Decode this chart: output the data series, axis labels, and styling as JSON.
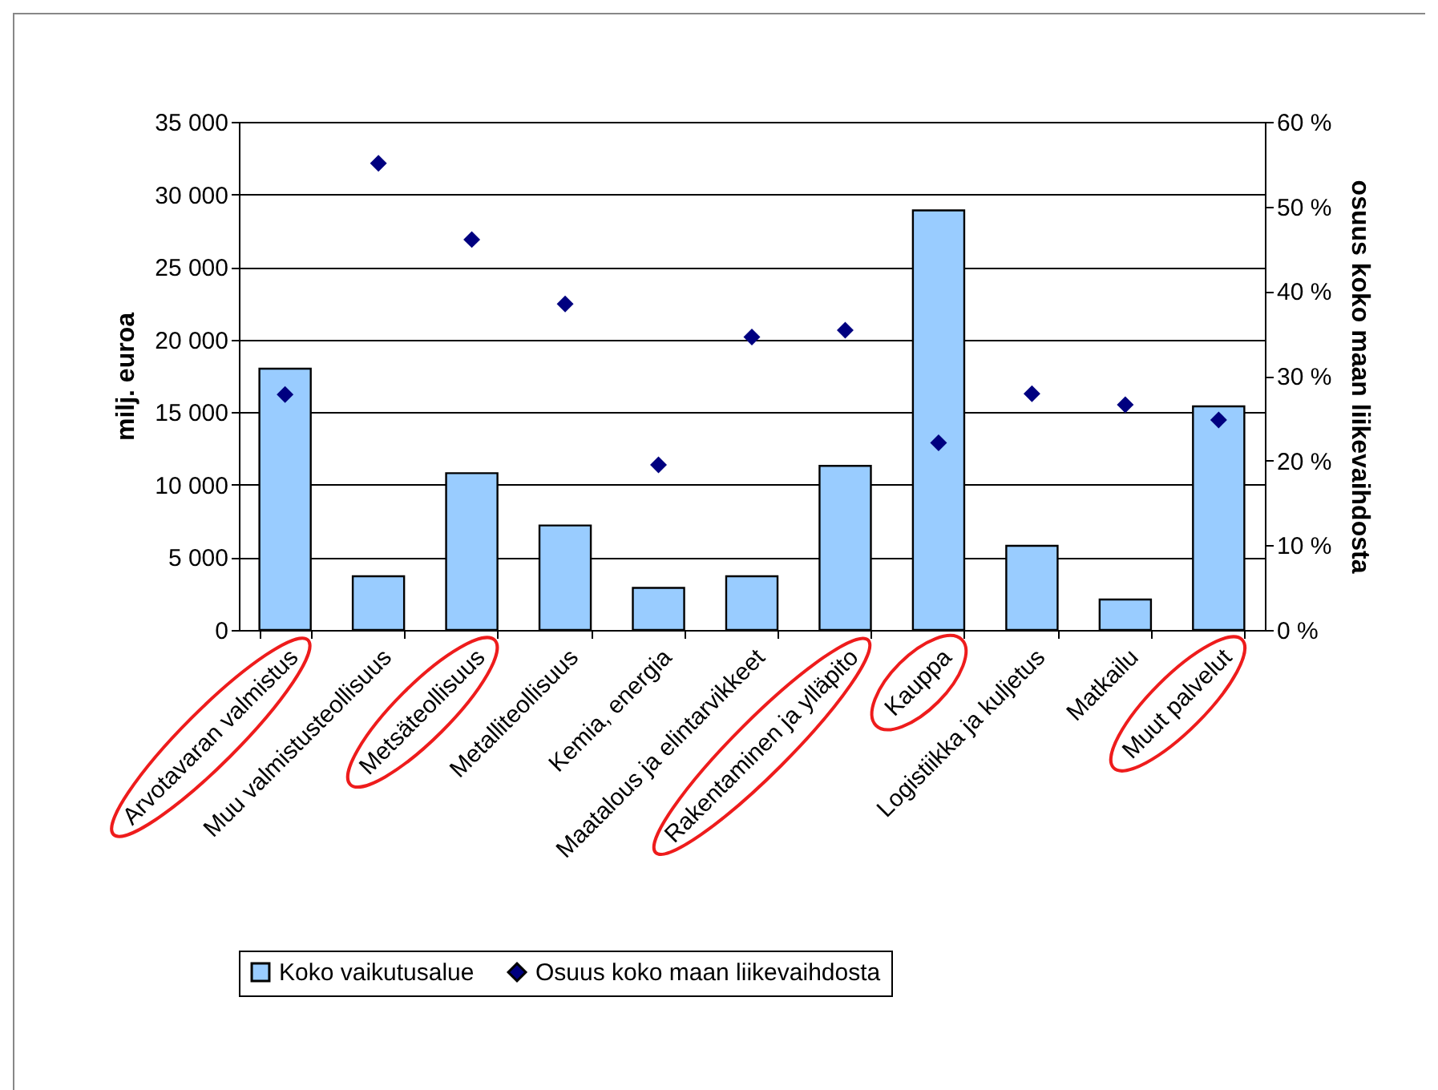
{
  "chart_data": {
    "type": "bar",
    "ylabel": "milj. euroa",
    "y2label": "osuus koko maan liikevaihdosta",
    "categories": [
      "Arvotavaran valmistus",
      "Muu valmistusteollisuus",
      "Metsäteollisuus",
      "Metalliteollisuus",
      "Kemia, energia",
      "Maatalous ja elintarvikkeet",
      "Rakentaminen ja ylläpito",
      "Kauppa",
      "Logistiikka ja kuljetus",
      "Matkailu",
      "Muut palvelut"
    ],
    "series": [
      {
        "name": "Koko vaikutusalue",
        "color": "#99ccff",
        "values": [
          18000,
          3700,
          10800,
          7200,
          2900,
          3700,
          11300,
          28900,
          5800,
          2100,
          15400
        ]
      },
      {
        "name": "Osuus koko maan liikevaihdosta",
        "type": "scatter",
        "axis": "y2",
        "color": "#000080",
        "values": [
          27.8,
          55.1,
          46.1,
          38.5,
          19.5,
          34.6,
          35.4,
          22.1,
          27.9,
          26.6,
          24.8
        ]
      }
    ],
    "ylim": [
      0,
      35000
    ],
    "yticks": [
      0,
      {
        "value": 5000,
        "label": "5 000"
      },
      {
        "value": 10000,
        "label": "10 000"
      },
      {
        "value": 15000,
        "label": "15 000"
      },
      {
        "value": 20000,
        "label": "20 000"
      },
      {
        "value": 25000,
        "label": "25 000"
      },
      {
        "value": 30000,
        "label": "30 000"
      },
      {
        "value": 35000,
        "label": "35 000"
      }
    ],
    "y2lim": [
      0,
      60
    ],
    "y2ticks": [
      {
        "value": 0,
        "label": "0 %"
      },
      {
        "value": 10,
        "label": "10 %"
      },
      {
        "value": 20,
        "label": "20 %"
      },
      {
        "value": 30,
        "label": "30 %"
      },
      {
        "value": 40,
        "label": "40 %"
      },
      {
        "value": 50,
        "label": "50 %"
      },
      {
        "value": 60,
        "label": "60 %"
      }
    ],
    "grid": "y",
    "legend": "bottom",
    "marker": "diamond"
  }
}
